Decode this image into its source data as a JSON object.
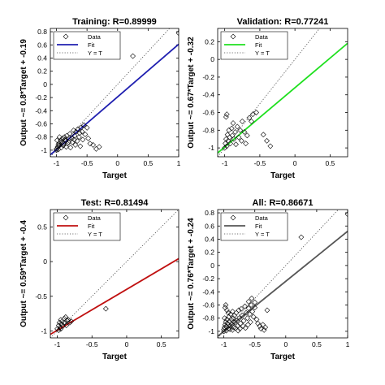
{
  "chart_data": [
    {
      "type": "scatter",
      "title": "Training: R=0.89999",
      "xlabel": "Target",
      "ylabel": "Output ~= 0.8*Target + -0.19",
      "xlim": [
        -1.1,
        1.0
      ],
      "ylim": [
        -1.1,
        0.85
      ],
      "xticks": [
        -1,
        -0.5,
        0,
        0.5,
        1
      ],
      "xtick_labels": [
        "-1",
        "-0.5",
        "0",
        "0.5",
        "1"
      ],
      "yticks": [
        -1,
        -0.8,
        -0.6,
        -0.4,
        -0.2,
        0,
        0.2,
        0.4,
        0.6,
        0.8
      ],
      "ytick_labels": [
        "-1",
        "-0.8",
        "-0.6",
        "-0.4",
        "-0.2",
        "0",
        "0.2",
        "0.4",
        "0.6",
        "0.8"
      ],
      "fit": {
        "slope": 0.8,
        "intercept": -0.19,
        "color": "#1f1fb0"
      },
      "legend": {
        "position": "top-left",
        "entries": [
          "Data",
          "Fit",
          "Y = T"
        ]
      },
      "points": [
        [
          -1,
          -1
        ],
        [
          -1,
          -0.98
        ],
        [
          -0.98,
          -0.95
        ],
        [
          -0.97,
          -0.92
        ],
        [
          -0.96,
          -0.9
        ],
        [
          -0.95,
          -0.93
        ],
        [
          -0.94,
          -0.88
        ],
        [
          -0.93,
          -0.85
        ],
        [
          -0.92,
          -0.96
        ],
        [
          -0.9,
          -0.82
        ],
        [
          -0.88,
          -0.9
        ],
        [
          -0.87,
          -0.8
        ],
        [
          -0.85,
          -0.86
        ],
        [
          -0.83,
          -0.78
        ],
        [
          -0.8,
          -0.88
        ],
        [
          -0.78,
          -0.75
        ],
        [
          -0.75,
          -0.82
        ],
        [
          -0.72,
          -0.7
        ],
        [
          -0.7,
          -0.78
        ],
        [
          -0.68,
          -0.72
        ],
        [
          -0.65,
          -0.68
        ],
        [
          -0.62,
          -0.74
        ],
        [
          -0.6,
          -0.66
        ],
        [
          -0.58,
          -0.72
        ],
        [
          -0.55,
          -0.62
        ],
        [
          -0.5,
          -0.66
        ],
        [
          -0.45,
          -0.9
        ],
        [
          -0.4,
          -0.92
        ],
        [
          -0.35,
          -0.98
        ],
        [
          -0.3,
          -0.95
        ],
        [
          0.25,
          0.43
        ],
        [
          1,
          0.78
        ],
        [
          -0.99,
          -0.85
        ],
        [
          -0.97,
          -0.99
        ],
        [
          -0.95,
          -0.8
        ],
        [
          -0.91,
          -0.88
        ],
        [
          -0.89,
          -0.93
        ],
        [
          -0.86,
          -0.84
        ],
        [
          -0.84,
          -0.95
        ],
        [
          -0.82,
          -0.9
        ],
        [
          -0.79,
          -0.82
        ],
        [
          -0.77,
          -0.96
        ],
        [
          -0.74,
          -0.88
        ],
        [
          -0.71,
          -0.84
        ],
        [
          -0.69,
          -0.92
        ],
        [
          -0.66,
          -0.86
        ],
        [
          -0.63,
          -0.8
        ],
        [
          -0.61,
          -0.94
        ],
        [
          -0.57,
          -0.84
        ],
        [
          -0.53,
          -0.76
        ],
        [
          -0.48,
          -0.82
        ]
      ]
    },
    {
      "type": "scatter",
      "title": "Validation: R=0.77241",
      "xlabel": "Target",
      "ylabel": "Output ~= 0.67*Target + -0.32",
      "xlim": [
        -1.1,
        0.75
      ],
      "ylim": [
        -1.1,
        0.35
      ],
      "xticks": [
        -1,
        -0.5,
        0,
        0.5
      ],
      "xtick_labels": [
        "-1",
        "-0.5",
        "0",
        "0.5"
      ],
      "yticks": [
        -1,
        -0.8,
        -0.6,
        -0.4,
        -0.2,
        0,
        0.2
      ],
      "ytick_labels": [
        "-1",
        "-0.8",
        "-0.6",
        "-0.4",
        "-0.2",
        "0",
        "0.2"
      ],
      "fit": {
        "slope": 0.67,
        "intercept": -0.32,
        "color": "#1fe01f"
      },
      "legend": {
        "position": "top-left",
        "entries": [
          "Data",
          "Fit",
          "Y = T"
        ]
      },
      "points": [
        [
          -1,
          -1
        ],
        [
          -0.99,
          -0.95
        ],
        [
          -0.98,
          -0.9
        ],
        [
          -0.97,
          -0.98
        ],
        [
          -0.96,
          -0.85
        ],
        [
          -0.95,
          -0.92
        ],
        [
          -0.94,
          -0.8
        ],
        [
          -0.93,
          -0.88
        ],
        [
          -0.92,
          -0.95
        ],
        [
          -0.9,
          -0.78
        ],
        [
          -0.89,
          -0.86
        ],
        [
          -0.88,
          -0.72
        ],
        [
          -0.87,
          -0.9
        ],
        [
          -0.85,
          -0.82
        ],
        [
          -0.84,
          -0.96
        ],
        [
          -0.82,
          -0.76
        ],
        [
          -0.8,
          -0.88
        ],
        [
          -0.78,
          -0.8
        ],
        [
          -0.76,
          -0.92
        ],
        [
          -0.75,
          -0.7
        ],
        [
          -0.72,
          -0.82
        ],
        [
          -0.7,
          -0.95
        ],
        [
          -0.68,
          -0.86
        ],
        [
          -0.65,
          -0.66
        ],
        [
          -0.62,
          -0.7
        ],
        [
          -0.6,
          -0.62
        ],
        [
          -0.55,
          -0.6
        ],
        [
          -0.45,
          -0.85
        ],
        [
          -0.4,
          -0.92
        ],
        [
          -0.35,
          -0.98
        ],
        [
          -0.97,
          -0.62
        ],
        [
          -0.98,
          -0.65
        ]
      ]
    },
    {
      "type": "scatter",
      "title": "Test: R=0.81494",
      "xlabel": "Target",
      "ylabel": "Output ~= 0.59*Target + -0.4",
      "xlim": [
        -1.1,
        0.75
      ],
      "ylim": [
        -1.1,
        0.75
      ],
      "xticks": [
        -1,
        -0.5,
        0,
        0.5
      ],
      "xtick_labels": [
        "-1",
        "-0.5",
        "0",
        "0.5"
      ],
      "yticks": [
        -1,
        -0.5,
        0,
        0.5
      ],
      "ytick_labels": [
        "-1",
        "-0.5",
        "0",
        "0.5"
      ],
      "fit": {
        "slope": 0.59,
        "intercept": -0.4,
        "color": "#c01010"
      },
      "legend": {
        "position": "top-left",
        "entries": [
          "Data",
          "Fit",
          "Y = T"
        ]
      },
      "points": [
        [
          -1,
          -0.97
        ],
        [
          -0.98,
          -0.92
        ],
        [
          -0.97,
          -0.88
        ],
        [
          -0.96,
          -0.95
        ],
        [
          -0.95,
          -0.84
        ],
        [
          -0.94,
          -0.9
        ],
        [
          -0.93,
          -0.86
        ],
        [
          -0.92,
          -0.93
        ],
        [
          -0.9,
          -0.82
        ],
        [
          -0.89,
          -0.88
        ],
        [
          -0.88,
          -0.8
        ],
        [
          -0.87,
          -0.92
        ],
        [
          -0.86,
          -0.85
        ],
        [
          -0.84,
          -0.84
        ],
        [
          -0.82,
          -0.88
        ],
        [
          -0.8,
          -0.86
        ],
        [
          -0.98,
          -0.99
        ],
        [
          -0.95,
          -0.97
        ],
        [
          -0.3,
          -0.68
        ]
      ]
    },
    {
      "type": "scatter",
      "title": "All: R=0.86671",
      "xlabel": "Target",
      "ylabel": "Output ~= 0.76*Target + -0.24",
      "xlim": [
        -1.1,
        1.0
      ],
      "ylim": [
        -1.1,
        0.85
      ],
      "xticks": [
        -1,
        -0.5,
        0,
        0.5,
        1
      ],
      "xtick_labels": [
        "-1",
        "-0.5",
        "0",
        "0.5",
        "1"
      ],
      "yticks": [
        -1,
        -0.8,
        -0.6,
        -0.4,
        -0.2,
        0,
        0.2,
        0.4,
        0.6,
        0.8
      ],
      "ytick_labels": [
        "-1",
        "-0.8",
        "-0.6",
        "-0.4",
        "-0.2",
        "0",
        "0.2",
        "0.4",
        "0.6",
        "0.8"
      ],
      "fit": {
        "slope": 0.76,
        "intercept": -0.24,
        "color": "#555555"
      },
      "legend": {
        "position": "top-left",
        "entries": [
          "Data",
          "Fit",
          "Y = T"
        ]
      },
      "points": [
        [
          -1,
          -1
        ],
        [
          -1,
          -0.97
        ],
        [
          -0.99,
          -0.94
        ],
        [
          -0.98,
          -0.9
        ],
        [
          -0.97,
          -0.86
        ],
        [
          -0.96,
          -0.93
        ],
        [
          -0.95,
          -0.82
        ],
        [
          -0.94,
          -0.88
        ],
        [
          -0.93,
          -0.96
        ],
        [
          -0.92,
          -0.78
        ],
        [
          -0.91,
          -0.85
        ],
        [
          -0.9,
          -0.92
        ],
        [
          -0.89,
          -0.74
        ],
        [
          -0.88,
          -0.82
        ],
        [
          -0.87,
          -0.9
        ],
        [
          -0.86,
          -0.7
        ],
        [
          -0.85,
          -0.8
        ],
        [
          -0.84,
          -0.94
        ],
        [
          -0.83,
          -0.76
        ],
        [
          -0.82,
          -0.86
        ],
        [
          -0.8,
          -0.72
        ],
        [
          -0.79,
          -0.84
        ],
        [
          -0.78,
          -0.92
        ],
        [
          -0.76,
          -0.68
        ],
        [
          -0.75,
          -0.8
        ],
        [
          -0.73,
          -0.88
        ],
        [
          -0.72,
          -0.66
        ],
        [
          -0.7,
          -0.76
        ],
        [
          -0.68,
          -0.84
        ],
        [
          -0.66,
          -0.62
        ],
        [
          -0.64,
          -0.72
        ],
        [
          -0.62,
          -0.8
        ],
        [
          -0.6,
          -0.65
        ],
        [
          -0.58,
          -0.74
        ],
        [
          -0.56,
          -0.6
        ],
        [
          -0.54,
          -0.7
        ],
        [
          -0.52,
          -0.78
        ],
        [
          -0.5,
          -0.64
        ],
        [
          -0.47,
          -0.82
        ],
        [
          -0.45,
          -0.88
        ],
        [
          -0.42,
          -0.92
        ],
        [
          -0.4,
          -0.96
        ],
        [
          -0.37,
          -0.9
        ],
        [
          -0.35,
          -0.98
        ],
        [
          -0.33,
          -0.94
        ],
        [
          -0.3,
          -0.68
        ],
        [
          -0.97,
          -0.6
        ],
        [
          -0.98,
          -0.64
        ],
        [
          -0.95,
          -0.68
        ],
        [
          -0.6,
          -0.55
        ],
        [
          -0.55,
          -0.5
        ],
        [
          -0.5,
          -0.56
        ],
        [
          0.25,
          0.43
        ],
        [
          1,
          0.78
        ],
        [
          -0.99,
          -0.8
        ],
        [
          -0.96,
          -0.99
        ],
        [
          -0.93,
          -0.72
        ],
        [
          -0.9,
          -0.97
        ],
        [
          -0.86,
          -0.98
        ],
        [
          -0.81,
          -0.95
        ],
        [
          -0.77,
          -0.99
        ],
        [
          -0.74,
          -0.96
        ],
        [
          -0.69,
          -0.92
        ],
        [
          -0.65,
          -0.95
        ],
        [
          -0.61,
          -0.9
        ],
        [
          -0.57,
          -0.86
        ]
      ]
    }
  ]
}
